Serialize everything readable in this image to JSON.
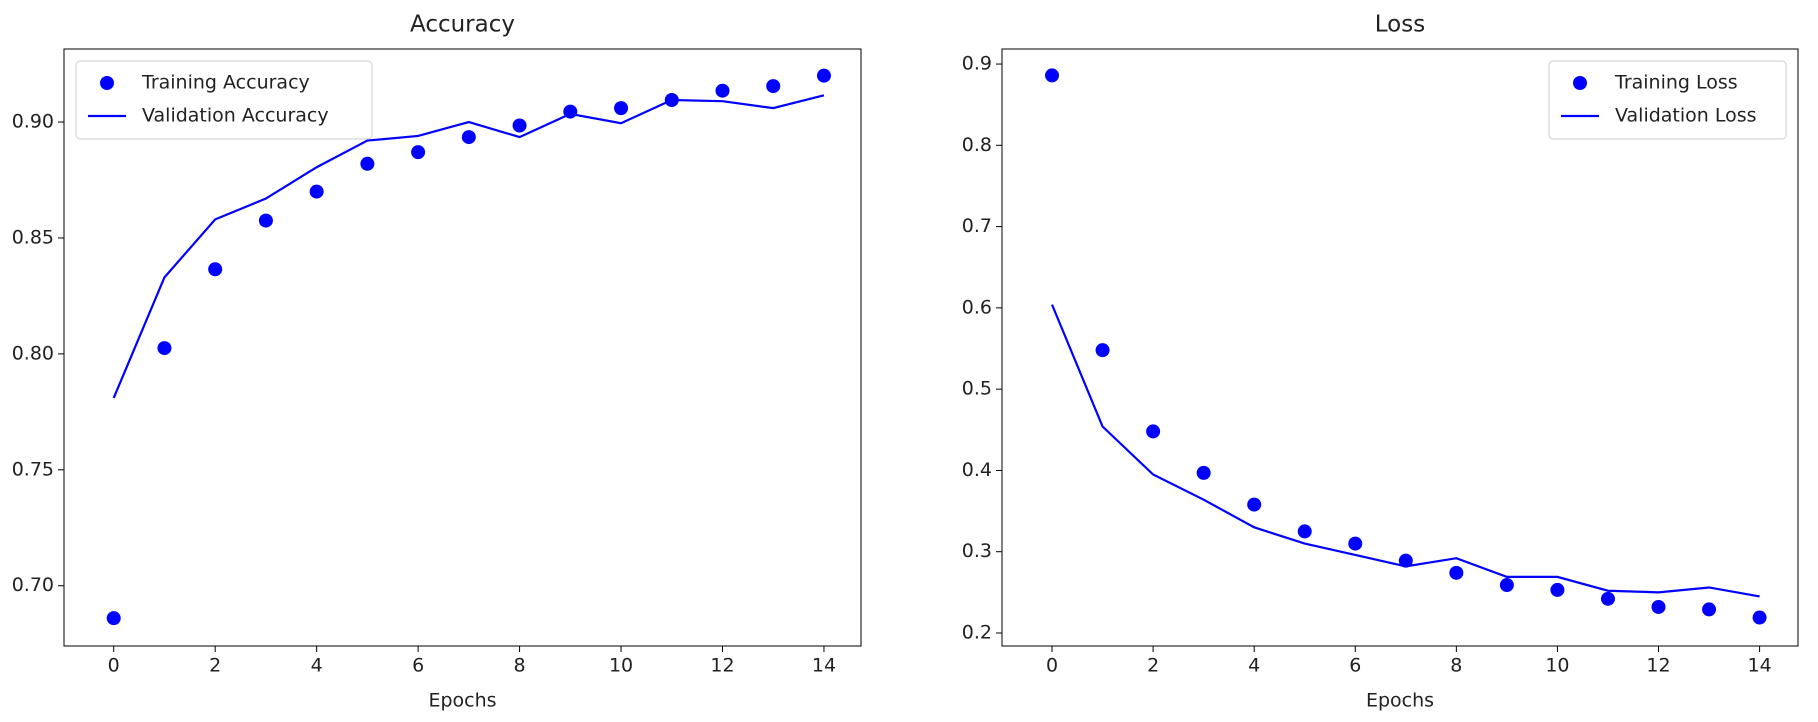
{
  "chart_data": [
    {
      "type": "line",
      "title": "Accuracy",
      "x_label": "Epochs",
      "x": [
        0,
        1,
        2,
        3,
        4,
        5,
        6,
        7,
        8,
        9,
        10,
        11,
        12,
        13,
        14
      ],
      "series": [
        {
          "name": "Training Accuracy",
          "kind": "scatter",
          "color": "#0000ff",
          "values": [
            0.686,
            0.8025,
            0.8365,
            0.8575,
            0.87,
            0.882,
            0.887,
            0.8935,
            0.8985,
            0.9045,
            0.906,
            0.9095,
            0.9135,
            0.9155,
            0.92
          ]
        },
        {
          "name": "Validation Accuracy",
          "kind": "line",
          "color": "#0000ff",
          "values": [
            0.781,
            0.833,
            0.858,
            0.867,
            0.8805,
            0.892,
            0.894,
            0.9,
            0.8935,
            0.9035,
            0.8995,
            0.9095,
            0.909,
            0.906,
            0.9115
          ]
        }
      ],
      "xlim": [
        -0.98,
        14.73
      ],
      "xticks": [
        0,
        2,
        4,
        6,
        8,
        10,
        12,
        14
      ],
      "ylim": [
        0.674,
        0.9315
      ],
      "yticks": [
        {
          "value": 0.7,
          "label": "0.70"
        },
        0.75,
        {
          "value": 0.8,
          "label": "0.80"
        },
        0.85,
        {
          "value": 0.9,
          "label": "0.90"
        }
      ],
      "legend": "upper left"
    },
    {
      "type": "line",
      "title": "Loss",
      "x_label": "Epochs",
      "x": [
        0,
        1,
        2,
        3,
        4,
        5,
        6,
        7,
        8,
        9,
        10,
        11,
        12,
        13,
        14
      ],
      "series": [
        {
          "name": "Training Loss",
          "kind": "scatter",
          "color": "#0000ff",
          "values": [
            0.886,
            0.548,
            0.448,
            0.397,
            0.358,
            0.325,
            0.31,
            0.289,
            0.274,
            0.259,
            0.253,
            0.242,
            0.232,
            0.229,
            0.219
          ]
        },
        {
          "name": "Validation Loss",
          "kind": "line",
          "color": "#0000ff",
          "values": [
            0.604,
            0.454,
            0.395,
            0.364,
            0.33,
            0.31,
            0.296,
            0.282,
            0.292,
            0.269,
            0.269,
            0.252,
            0.25,
            0.256,
            0.245
          ]
        }
      ],
      "xlim": [
        -0.99,
        14.76
      ],
      "xticks": [
        0,
        2,
        4,
        6,
        8,
        10,
        12,
        14
      ],
      "ylim": [
        0.184,
        0.9185
      ],
      "yticks": [
        0.2,
        0.3,
        0.4,
        0.5,
        0.6,
        0.7,
        0.8,
        0.9
      ],
      "legend": "upper right"
    }
  ]
}
